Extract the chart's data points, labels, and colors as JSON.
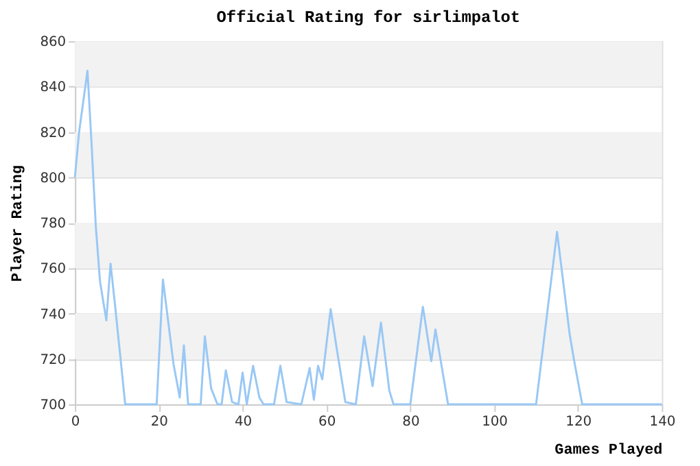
{
  "chart_data": {
    "type": "line",
    "title": "Official Rating for sirlimpalot",
    "xlabel": "Games Played",
    "ylabel": "Player Rating",
    "series": [
      {
        "color": "#99c8f5",
        "x": [
          0,
          1,
          3,
          4,
          5,
          6,
          7.5,
          8.5,
          9.5,
          11,
          12,
          19.5,
          21,
          23.5,
          25,
          26,
          27,
          30,
          31,
          32.5,
          34,
          35,
          36,
          37.5,
          39,
          40,
          41,
          42.5,
          44,
          45,
          47.5,
          49,
          50.5,
          54,
          56,
          57,
          58,
          59,
          61,
          62.5,
          64.5,
          67,
          69,
          71,
          73,
          75,
          76,
          80,
          83,
          85,
          86,
          89,
          110,
          115,
          118,
          119,
          121,
          140
        ],
        "values": [
          800,
          820,
          847,
          814,
          778,
          754,
          737,
          762,
          745,
          718,
          700,
          700,
          755,
          718,
          703,
          726,
          700,
          700,
          730,
          707,
          700,
          700,
          715,
          701,
          700,
          714,
          700,
          717,
          703,
          700,
          700,
          717,
          701,
          700,
          716,
          702,
          717,
          711,
          742,
          724,
          701,
          700,
          730,
          708,
          736,
          706,
          700,
          700,
          743,
          719,
          733,
          700,
          700,
          776,
          731,
          720,
          700,
          700
        ]
      }
    ],
    "xlim": [
      0,
      140
    ],
    "xticks": [
      0,
      20,
      40,
      60,
      80,
      100,
      120,
      140
    ],
    "ylim": [
      700,
      860
    ],
    "yticks": [
      700,
      720,
      740,
      760,
      780,
      800,
      820,
      840,
      860
    ],
    "bands": [
      {
        "axis": "y",
        "from": 720,
        "to": 740,
        "color": "#f2f2f2"
      },
      {
        "axis": "y",
        "from": 760,
        "to": 780,
        "color": "#f2f2f2"
      },
      {
        "axis": "y",
        "from": 800,
        "to": 820,
        "color": "#f2f2f2"
      },
      {
        "axis": "y",
        "from": 840,
        "to": 860,
        "color": "#f2f2f2"
      }
    ],
    "grid": "y",
    "marker": "none",
    "line_style": "solid"
  }
}
